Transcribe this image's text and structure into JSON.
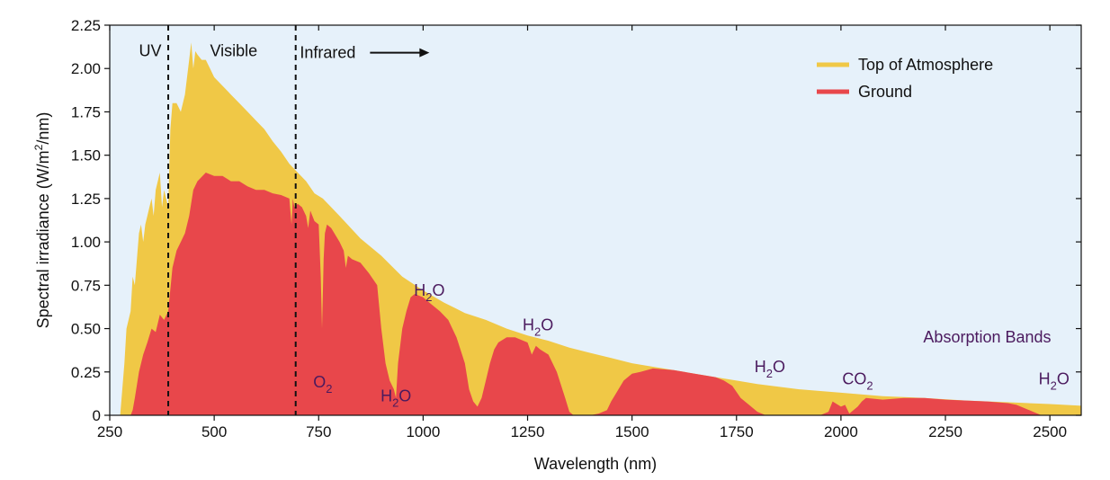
{
  "chart_data": {
    "type": "area",
    "xlabel": "Wavelength (nm)",
    "ylabel_prefix": "Spectral irradiance (W/m",
    "ylabel_sup": "2",
    "ylabel_suffix": "/nm)",
    "xlim": [
      250,
      2575
    ],
    "ylim": [
      0,
      2.25
    ],
    "grid": false,
    "legend_position": "top-right",
    "background_color": "#e6f1fa",
    "x_ticks": [
      250,
      500,
      750,
      1000,
      1250,
      1500,
      1750,
      2000,
      2250,
      2500
    ],
    "x_tick_labels": [
      "250",
      "500",
      "750",
      "1000",
      "1250",
      "1500",
      "1750",
      "2000",
      "2250",
      "2500"
    ],
    "y_ticks": [
      0,
      0.25,
      0.5,
      0.75,
      1.0,
      1.25,
      1.5,
      1.75,
      2.0,
      2.25
    ],
    "y_tick_labels": [
      "0",
      "0.25",
      "0.50",
      "0.75",
      "1.00",
      "1.25",
      "1.50",
      "1.75",
      "2.00",
      "2.25"
    ],
    "region_dividers": [
      390,
      695
    ],
    "regions": [
      {
        "label": "UV",
        "x": 320,
        "y": 2.07
      },
      {
        "label": "Visible",
        "x": 490,
        "y": 2.07
      },
      {
        "label": "Infrared",
        "x": 705,
        "y": 2.06,
        "arrow_to": 1015
      }
    ],
    "series": [
      {
        "name": "Top of Atmosphere",
        "color": "#f0c846",
        "x": [
          275,
          285,
          290,
          300,
          305,
          310,
          315,
          320,
          325,
          330,
          335,
          340,
          345,
          350,
          355,
          360,
          370,
          375,
          380,
          390,
          395,
          400,
          410,
          420,
          430,
          440,
          445,
          450,
          455,
          460,
          470,
          480,
          490,
          500,
          520,
          540,
          560,
          580,
          600,
          620,
          640,
          660,
          680,
          700,
          720,
          740,
          760,
          780,
          800,
          850,
          900,
          950,
          1000,
          1050,
          1100,
          1150,
          1200,
          1250,
          1300,
          1350,
          1400,
          1450,
          1500,
          1550,
          1600,
          1650,
          1700,
          1750,
          1800,
          1900,
          2000,
          2100,
          2200,
          2300,
          2400,
          2500,
          2575
        ],
        "values": [
          0.0,
          0.3,
          0.5,
          0.6,
          0.8,
          0.75,
          0.9,
          1.05,
          1.1,
          1.0,
          1.1,
          1.15,
          1.2,
          1.25,
          1.15,
          1.3,
          1.4,
          1.2,
          1.3,
          1.2,
          1.65,
          1.8,
          1.8,
          1.75,
          1.85,
          2.05,
          2.15,
          2.0,
          2.1,
          2.08,
          2.05,
          2.05,
          2.0,
          1.95,
          1.9,
          1.85,
          1.8,
          1.75,
          1.7,
          1.65,
          1.58,
          1.52,
          1.45,
          1.4,
          1.35,
          1.28,
          1.25,
          1.2,
          1.15,
          1.02,
          0.92,
          0.8,
          0.72,
          0.65,
          0.59,
          0.55,
          0.5,
          0.46,
          0.43,
          0.39,
          0.36,
          0.33,
          0.3,
          0.28,
          0.26,
          0.24,
          0.22,
          0.2,
          0.18,
          0.15,
          0.13,
          0.11,
          0.1,
          0.085,
          0.075,
          0.065,
          0.055
        ]
      },
      {
        "name": "Ground",
        "color": "#e8474b",
        "x": [
          285,
          300,
          305,
          310,
          320,
          330,
          340,
          350,
          360,
          370,
          380,
          390,
          400,
          410,
          420,
          430,
          440,
          450,
          460,
          480,
          500,
          520,
          540,
          560,
          580,
          600,
          620,
          640,
          660,
          680,
          685,
          688,
          692,
          700,
          710,
          720,
          725,
          730,
          740,
          750,
          755,
          758,
          762,
          765,
          770,
          780,
          800,
          810,
          815,
          820,
          830,
          850,
          870,
          890,
          900,
          910,
          920,
          930,
          935,
          940,
          950,
          960,
          970,
          980,
          1000,
          1020,
          1040,
          1060,
          1080,
          1100,
          1110,
          1120,
          1130,
          1140,
          1150,
          1160,
          1170,
          1180,
          1200,
          1220,
          1240,
          1250,
          1260,
          1270,
          1280,
          1300,
          1320,
          1340,
          1350,
          1360,
          1380,
          1400,
          1420,
          1440,
          1450,
          1460,
          1480,
          1500,
          1520,
          1550,
          1600,
          1650,
          1700,
          1720,
          1740,
          1760,
          1780,
          1800,
          1820,
          1860,
          1900,
          1950,
          1970,
          1980,
          2000,
          2010,
          2020,
          2040,
          2050,
          2060,
          2100,
          2150,
          2200,
          2250,
          2300,
          2350,
          2400,
          2420,
          2440,
          2460,
          2480,
          2500,
          2575
        ],
        "values": [
          0.0,
          0.0,
          0.03,
          0.1,
          0.25,
          0.35,
          0.42,
          0.5,
          0.48,
          0.58,
          0.55,
          0.6,
          0.85,
          0.95,
          1.0,
          1.05,
          1.15,
          1.3,
          1.35,
          1.4,
          1.38,
          1.38,
          1.35,
          1.35,
          1.32,
          1.3,
          1.3,
          1.28,
          1.27,
          1.25,
          1.1,
          1.25,
          1.2,
          1.22,
          1.2,
          1.15,
          1.08,
          1.18,
          1.12,
          1.1,
          0.8,
          0.5,
          0.9,
          1.05,
          1.1,
          1.08,
          1.0,
          0.95,
          0.85,
          0.92,
          0.9,
          0.88,
          0.82,
          0.75,
          0.5,
          0.3,
          0.2,
          0.15,
          0.1,
          0.3,
          0.5,
          0.6,
          0.68,
          0.7,
          0.68,
          0.64,
          0.6,
          0.55,
          0.45,
          0.3,
          0.15,
          0.08,
          0.05,
          0.1,
          0.2,
          0.3,
          0.38,
          0.42,
          0.45,
          0.45,
          0.43,
          0.42,
          0.35,
          0.4,
          0.38,
          0.35,
          0.25,
          0.1,
          0.02,
          0.0,
          0.0,
          0.0,
          0.01,
          0.03,
          0.08,
          0.12,
          0.2,
          0.24,
          0.25,
          0.27,
          0.26,
          0.24,
          0.22,
          0.2,
          0.17,
          0.1,
          0.06,
          0.02,
          0.0,
          0.0,
          0.0,
          0.0,
          0.02,
          0.08,
          0.05,
          0.06,
          0.01,
          0.05,
          0.08,
          0.1,
          0.09,
          0.1,
          0.1,
          0.09,
          0.085,
          0.08,
          0.07,
          0.06,
          0.04,
          0.02,
          0.0,
          0.0,
          0.0
        ]
      }
    ],
    "annotations": [
      {
        "base": "H",
        "sub": "2",
        "suffix": "O",
        "x": 1015,
        "y": 0.69
      },
      {
        "base": "H",
        "sub": "2",
        "suffix": "O",
        "x": 1275,
        "y": 0.49
      },
      {
        "base": "O",
        "sub": "2",
        "suffix": "",
        "x": 760,
        "y": 0.16
      },
      {
        "base": "H",
        "sub": "2",
        "suffix": "O",
        "x": 935,
        "y": 0.08
      },
      {
        "base": "H",
        "sub": "2",
        "suffix": "O",
        "x": 1830,
        "y": 0.25
      },
      {
        "base": "CO",
        "sub": "2",
        "suffix": "",
        "x": 2040,
        "y": 0.18
      },
      {
        "base": "H",
        "sub": "2",
        "suffix": "O",
        "x": 2510,
        "y": 0.18
      },
      {
        "base": "Absorption Bands",
        "sub": "",
        "suffix": "",
        "x": 2350,
        "y": 0.42
      }
    ]
  }
}
